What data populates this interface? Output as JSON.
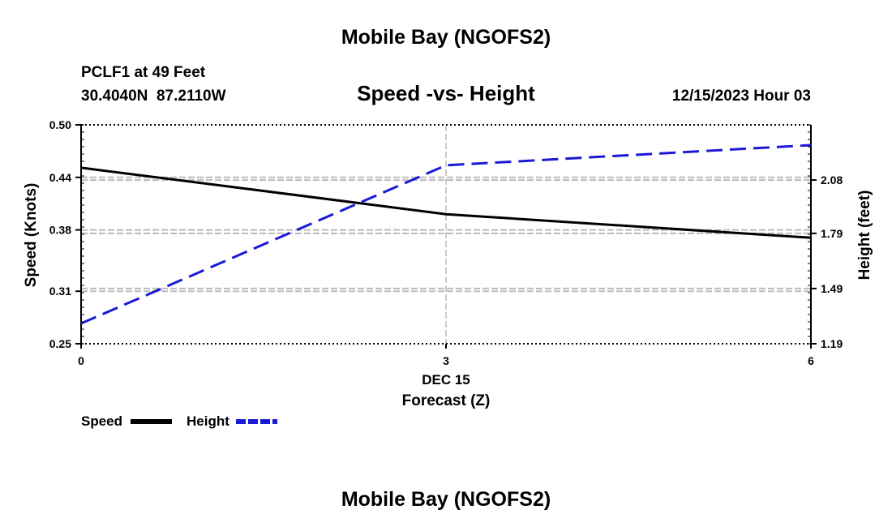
{
  "page": {
    "header_title": "Mobile Bay (NGOFS2)",
    "footer_title": "Mobile Bay (NGOFS2)",
    "station_line": "PCLF1 at 49 Feet",
    "coords_line": "30.4040N  87.2110W",
    "date_line": "12/15/2023 Hour 03"
  },
  "colors": {
    "speed_line": "#000000",
    "height_line": "#1a1ad6",
    "grid": "#bbbbbb"
  },
  "chart_data": {
    "type": "line",
    "title": "Speed -vs- Height",
    "xlabel": "Forecast (Z)",
    "x_date_label": "DEC 15",
    "x_ticks": [
      0,
      3,
      6
    ],
    "x_tick_labels": [
      "0",
      "3",
      "6"
    ],
    "xlim": [
      0,
      6
    ],
    "ylabel_left": "Speed (Knots)",
    "ylim_left": [
      0.25,
      0.5
    ],
    "yticks_left": [
      0.25,
      0.31,
      0.38,
      0.44,
      0.5
    ],
    "ytick_labels_left": [
      "0.25",
      "0.31",
      "0.38",
      "0.44",
      "0.50"
    ],
    "ylabel_right": "Height (feet)",
    "ylim_right": [
      1.19,
      2.38
    ],
    "yticks_right": [
      1.19,
      1.49,
      1.79,
      2.08
    ],
    "ytick_labels_right": [
      "1.19",
      "1.49",
      "1.79",
      "2.08"
    ],
    "grid": true,
    "legend_position": "bottom-left",
    "series": [
      {
        "name": "Speed",
        "axis": "left",
        "style": "solid",
        "x": [
          0,
          3,
          6
        ],
        "values": [
          0.451,
          0.398,
          0.371
        ]
      },
      {
        "name": "Height",
        "axis": "right",
        "style": "dashed",
        "x": [
          0,
          3,
          6
        ],
        "values": [
          1.3,
          2.16,
          2.27
        ]
      }
    ]
  }
}
